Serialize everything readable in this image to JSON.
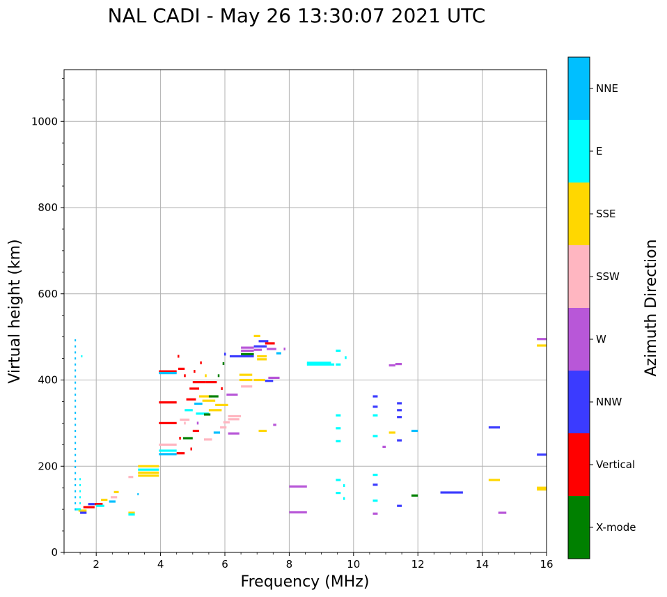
{
  "chart_data": {
    "type": "scatter",
    "title": "NAL CADI - May 26 13:30:07 2021 UTC",
    "xlabel": "Frequency (MHz)",
    "ylabel": "Virtual height (km)",
    "xlim": [
      1,
      16
    ],
    "ylim": [
      0,
      1120
    ],
    "xticks": [
      2,
      4,
      6,
      8,
      10,
      12,
      14,
      16
    ],
    "yticks": [
      0,
      200,
      400,
      600,
      800,
      1000
    ],
    "grid": true,
    "colorbar": {
      "label": "Azimuth Direction",
      "categories": [
        {
          "name": "X-mode",
          "color": "#008000"
        },
        {
          "name": "Vertical",
          "color": "#ff0000"
        },
        {
          "name": "NNW",
          "color": "#3b3bff"
        },
        {
          "name": "W",
          "color": "#b857d8"
        },
        {
          "name": "SSW",
          "color": "#ffb6c1"
        },
        {
          "name": "SSE",
          "color": "#ffd700"
        },
        {
          "name": "E",
          "color": "#00ffff"
        },
        {
          "name": "NNE",
          "color": "#00bfff"
        }
      ]
    },
    "segments": [
      {
        "f1": 1.35,
        "f2": 1.5,
        "h": 100,
        "d": "E"
      },
      {
        "f1": 1.45,
        "f2": 1.7,
        "h": 97,
        "d": "SSE"
      },
      {
        "f1": 1.5,
        "f2": 1.7,
        "h": 92,
        "d": "NNW"
      },
      {
        "f1": 1.6,
        "f2": 1.95,
        "h": 105,
        "d": "Vertical"
      },
      {
        "f1": 1.75,
        "f2": 1.95,
        "h": 112,
        "d": "NNW"
      },
      {
        "f1": 1.95,
        "f2": 2.2,
        "h": 112,
        "d": "Vertical"
      },
      {
        "f1": 2.0,
        "f2": 2.25,
        "h": 108,
        "d": "E"
      },
      {
        "f1": 2.15,
        "f2": 2.35,
        "h": 122,
        "d": "SSE"
      },
      {
        "f1": 2.4,
        "f2": 2.6,
        "h": 118,
        "d": "NNE"
      },
      {
        "f1": 2.45,
        "f2": 2.65,
        "h": 128,
        "d": "SSW"
      },
      {
        "f1": 2.55,
        "f2": 2.7,
        "h": 140,
        "d": "SSE"
      },
      {
        "f1": 3.0,
        "f2": 3.15,
        "h": 175,
        "d": "SSW"
      },
      {
        "f1": 3.0,
        "f2": 3.2,
        "h": 92,
        "d": "SSE"
      },
      {
        "f1": 3.0,
        "f2": 3.2,
        "h": 88,
        "d": "E"
      },
      {
        "f1": 3.3,
        "f2": 3.95,
        "h": 200,
        "d": "SSE"
      },
      {
        "f1": 3.3,
        "f2": 3.95,
        "h": 192,
        "d": "E"
      },
      {
        "f1": 3.3,
        "f2": 3.95,
        "h": 185,
        "d": "SSE"
      },
      {
        "f1": 3.3,
        "f2": 3.95,
        "h": 178,
        "d": "SSE"
      },
      {
        "f1": 3.95,
        "f2": 4.5,
        "h": 250,
        "d": "SSW"
      },
      {
        "f1": 3.95,
        "f2": 4.5,
        "h": 236,
        "d": "E"
      },
      {
        "f1": 3.95,
        "f2": 4.5,
        "h": 228,
        "d": "NNE"
      },
      {
        "f1": 4.5,
        "f2": 4.75,
        "h": 230,
        "d": "Vertical"
      },
      {
        "f1": 3.95,
        "f2": 4.5,
        "h": 300,
        "d": "Vertical"
      },
      {
        "f1": 3.95,
        "f2": 4.5,
        "h": 348,
        "d": "Vertical"
      },
      {
        "f1": 3.95,
        "f2": 4.5,
        "h": 420,
        "d": "Vertical"
      },
      {
        "f1": 3.95,
        "f2": 4.5,
        "h": 416,
        "d": "NNE"
      },
      {
        "f1": 4.55,
        "f2": 4.75,
        "h": 426,
        "d": "Vertical"
      },
      {
        "f1": 4.6,
        "f2": 4.9,
        "h": 308,
        "d": "SSW"
      },
      {
        "f1": 4.75,
        "f2": 5.0,
        "h": 330,
        "d": "E"
      },
      {
        "f1": 4.8,
        "f2": 5.1,
        "h": 355,
        "d": "Vertical"
      },
      {
        "f1": 4.9,
        "f2": 5.2,
        "h": 380,
        "d": "Vertical"
      },
      {
        "f1": 5.0,
        "f2": 5.4,
        "h": 395,
        "d": "Vertical"
      },
      {
        "f1": 5.05,
        "f2": 5.3,
        "h": 345,
        "d": "NNE"
      },
      {
        "f1": 5.1,
        "f2": 5.5,
        "h": 322,
        "d": "E"
      },
      {
        "f1": 5.2,
        "f2": 5.6,
        "h": 362,
        "d": "SSE"
      },
      {
        "f1": 5.3,
        "f2": 5.7,
        "h": 352,
        "d": "SSE"
      },
      {
        "f1": 5.4,
        "f2": 5.75,
        "h": 395,
        "d": "Vertical"
      },
      {
        "f1": 5.5,
        "f2": 5.8,
        "h": 362,
        "d": "X-mode"
      },
      {
        "f1": 5.5,
        "f2": 5.9,
        "h": 330,
        "d": "SSE"
      },
      {
        "f1": 5.7,
        "f2": 6.1,
        "h": 342,
        "d": "SSE"
      },
      {
        "f1": 5.35,
        "f2": 5.55,
        "h": 320,
        "d": "X-mode"
      },
      {
        "f1": 4.7,
        "f2": 5.0,
        "h": 265,
        "d": "X-mode"
      },
      {
        "f1": 5.0,
        "f2": 5.2,
        "h": 282,
        "d": "Vertical"
      },
      {
        "f1": 5.35,
        "f2": 5.6,
        "h": 262,
        "d": "SSW"
      },
      {
        "f1": 5.65,
        "f2": 5.85,
        "h": 278,
        "d": "NNE"
      },
      {
        "f1": 5.85,
        "f2": 6.05,
        "h": 290,
        "d": "SSW"
      },
      {
        "f1": 5.95,
        "f2": 6.15,
        "h": 302,
        "d": "SSW"
      },
      {
        "f1": 6.05,
        "f2": 6.4,
        "h": 366,
        "d": "W"
      },
      {
        "f1": 6.1,
        "f2": 6.5,
        "h": 316,
        "d": "SSW"
      },
      {
        "f1": 6.1,
        "f2": 6.45,
        "h": 309,
        "d": "SSW"
      },
      {
        "f1": 6.1,
        "f2": 6.45,
        "h": 276,
        "d": "W"
      },
      {
        "f1": 6.15,
        "f2": 6.9,
        "h": 455,
        "d": "NNW"
      },
      {
        "f1": 6.45,
        "f2": 6.85,
        "h": 412,
        "d": "SSE"
      },
      {
        "f1": 6.45,
        "f2": 6.85,
        "h": 400,
        "d": "SSE"
      },
      {
        "f1": 6.5,
        "f2": 6.85,
        "h": 385,
        "d": "SSW"
      },
      {
        "f1": 6.5,
        "f2": 6.9,
        "h": 475,
        "d": "W"
      },
      {
        "f1": 6.5,
        "f2": 6.9,
        "h": 468,
        "d": "W"
      },
      {
        "f1": 6.5,
        "f2": 6.9,
        "h": 460,
        "d": "X-mode"
      },
      {
        "f1": 6.9,
        "f2": 7.25,
        "h": 400,
        "d": "SSE"
      },
      {
        "f1": 7.0,
        "f2": 7.3,
        "h": 455,
        "d": "SSE"
      },
      {
        "f1": 7.0,
        "f2": 7.3,
        "h": 448,
        "d": "SSE"
      },
      {
        "f1": 6.9,
        "f2": 7.3,
        "h": 478,
        "d": "NNW"
      },
      {
        "f1": 6.9,
        "f2": 7.15,
        "h": 470,
        "d": "W"
      },
      {
        "f1": 6.9,
        "f2": 7.1,
        "h": 502,
        "d": "SSE"
      },
      {
        "f1": 7.05,
        "f2": 7.35,
        "h": 490,
        "d": "NNW"
      },
      {
        "f1": 7.25,
        "f2": 7.55,
        "h": 485,
        "d": "Vertical"
      },
      {
        "f1": 7.3,
        "f2": 7.6,
        "h": 472,
        "d": "W"
      },
      {
        "f1": 7.35,
        "f2": 7.7,
        "h": 405,
        "d": "W"
      },
      {
        "f1": 7.25,
        "f2": 7.5,
        "h": 398,
        "d": "NNW"
      },
      {
        "f1": 7.6,
        "f2": 7.75,
        "h": 462,
        "d": "NNE"
      },
      {
        "f1": 7.05,
        "f2": 7.3,
        "h": 282,
        "d": "SSE"
      },
      {
        "f1": 7.5,
        "f2": 7.6,
        "h": 296,
        "d": "W"
      },
      {
        "f1": 8.55,
        "f2": 9.3,
        "h": 440,
        "d": "E"
      },
      {
        "f1": 8.55,
        "f2": 9.4,
        "h": 436,
        "d": "E"
      },
      {
        "f1": 9.45,
        "f2": 9.6,
        "h": 436,
        "d": "E"
      },
      {
        "f1": 9.45,
        "f2": 9.6,
        "h": 468,
        "d": "E"
      },
      {
        "f1": 9.45,
        "f2": 9.6,
        "h": 318,
        "d": "E"
      },
      {
        "f1": 9.45,
        "f2": 9.6,
        "h": 288,
        "d": "E"
      },
      {
        "f1": 9.45,
        "f2": 9.6,
        "h": 258,
        "d": "E"
      },
      {
        "f1": 9.45,
        "f2": 9.6,
        "h": 168,
        "d": "E"
      },
      {
        "f1": 9.45,
        "f2": 9.6,
        "h": 138,
        "d": "E"
      },
      {
        "f1": 8.0,
        "f2": 8.55,
        "h": 153,
        "d": "W"
      },
      {
        "f1": 8.0,
        "f2": 8.55,
        "h": 93,
        "d": "W"
      },
      {
        "f1": 10.6,
        "f2": 10.75,
        "h": 362,
        "d": "NNW"
      },
      {
        "f1": 10.6,
        "f2": 10.75,
        "h": 338,
        "d": "NNW"
      },
      {
        "f1": 10.6,
        "f2": 10.75,
        "h": 318,
        "d": "E"
      },
      {
        "f1": 10.6,
        "f2": 10.75,
        "h": 270,
        "d": "E"
      },
      {
        "f1": 10.6,
        "f2": 10.75,
        "h": 180,
        "d": "E"
      },
      {
        "f1": 10.6,
        "f2": 10.75,
        "h": 157,
        "d": "NNW"
      },
      {
        "f1": 10.6,
        "f2": 10.75,
        "h": 120,
        "d": "E"
      },
      {
        "f1": 10.6,
        "f2": 10.75,
        "h": 90,
        "d": "W"
      },
      {
        "f1": 10.9,
        "f2": 11.0,
        "h": 245,
        "d": "W"
      },
      {
        "f1": 11.1,
        "f2": 11.3,
        "h": 278,
        "d": "SSE"
      },
      {
        "f1": 11.1,
        "f2": 11.3,
        "h": 434,
        "d": "W"
      },
      {
        "f1": 11.3,
        "f2": 11.5,
        "h": 437,
        "d": "W"
      },
      {
        "f1": 11.35,
        "f2": 11.5,
        "h": 346,
        "d": "NNW"
      },
      {
        "f1": 11.35,
        "f2": 11.5,
        "h": 330,
        "d": "NNW"
      },
      {
        "f1": 11.35,
        "f2": 11.5,
        "h": 314,
        "d": "NNW"
      },
      {
        "f1": 11.35,
        "f2": 11.5,
        "h": 260,
        "d": "NNW"
      },
      {
        "f1": 11.35,
        "f2": 11.5,
        "h": 108,
        "d": "NNW"
      },
      {
        "f1": 11.8,
        "f2": 12.0,
        "h": 282,
        "d": "NNE"
      },
      {
        "f1": 11.8,
        "f2": 12.0,
        "h": 132,
        "d": "X-mode"
      },
      {
        "f1": 12.7,
        "f2": 13.4,
        "h": 139,
        "d": "NNW"
      },
      {
        "f1": 14.2,
        "f2": 14.55,
        "h": 290,
        "d": "NNW"
      },
      {
        "f1": 14.2,
        "f2": 14.55,
        "h": 168,
        "d": "SSE"
      },
      {
        "f1": 14.5,
        "f2": 14.75,
        "h": 92,
        "d": "W"
      },
      {
        "f1": 15.7,
        "f2": 16.0,
        "h": 495,
        "d": "W"
      },
      {
        "f1": 15.7,
        "f2": 16.0,
        "h": 480,
        "d": "SSE"
      },
      {
        "f1": 15.7,
        "f2": 16.0,
        "h": 227,
        "d": "NNW"
      },
      {
        "f1": 15.7,
        "f2": 16.0,
        "h": 150,
        "d": "SSE"
      },
      {
        "f1": 15.7,
        "f2": 16.0,
        "h": 146,
        "d": "SSE"
      }
    ],
    "vertical_traces": [
      {
        "f": 1.35,
        "h1": 100,
        "h2": 500,
        "d": "NNE"
      },
      {
        "f": 1.5,
        "h1": 100,
        "h2": 170,
        "d": "E"
      },
      {
        "f": 1.55,
        "h1": 455,
        "h2": 462,
        "d": "E"
      },
      {
        "f": 3.3,
        "h1": 135,
        "h2": 140,
        "d": "NNE"
      }
    ],
    "dots": [
      {
        "f": 4.55,
        "h": 455,
        "d": "Vertical"
      },
      {
        "f": 4.75,
        "h": 410,
        "d": "Vertical"
      },
      {
        "f": 5.05,
        "h": 420,
        "d": "Vertical"
      },
      {
        "f": 5.25,
        "h": 440,
        "d": "Vertical"
      },
      {
        "f": 5.95,
        "h": 438,
        "d": "X-mode"
      },
      {
        "f": 5.4,
        "h": 410,
        "d": "SSE"
      },
      {
        "f": 4.6,
        "h": 265,
        "d": "Vertical"
      },
      {
        "f": 4.75,
        "h": 300,
        "d": "SSW"
      },
      {
        "f": 4.95,
        "h": 240,
        "d": "Vertical"
      },
      {
        "f": 5.15,
        "h": 300,
        "d": "W"
      },
      {
        "f": 5.8,
        "h": 410,
        "d": "X-mode"
      },
      {
        "f": 5.9,
        "h": 380,
        "d": "Vertical"
      },
      {
        "f": 6.0,
        "h": 460,
        "d": "NNW"
      },
      {
        "f": 7.85,
        "h": 472,
        "d": "W"
      },
      {
        "f": 9.75,
        "h": 452,
        "d": "E"
      },
      {
        "f": 9.7,
        "h": 125,
        "d": "E"
      },
      {
        "f": 9.7,
        "h": 155,
        "d": "E"
      }
    ]
  }
}
